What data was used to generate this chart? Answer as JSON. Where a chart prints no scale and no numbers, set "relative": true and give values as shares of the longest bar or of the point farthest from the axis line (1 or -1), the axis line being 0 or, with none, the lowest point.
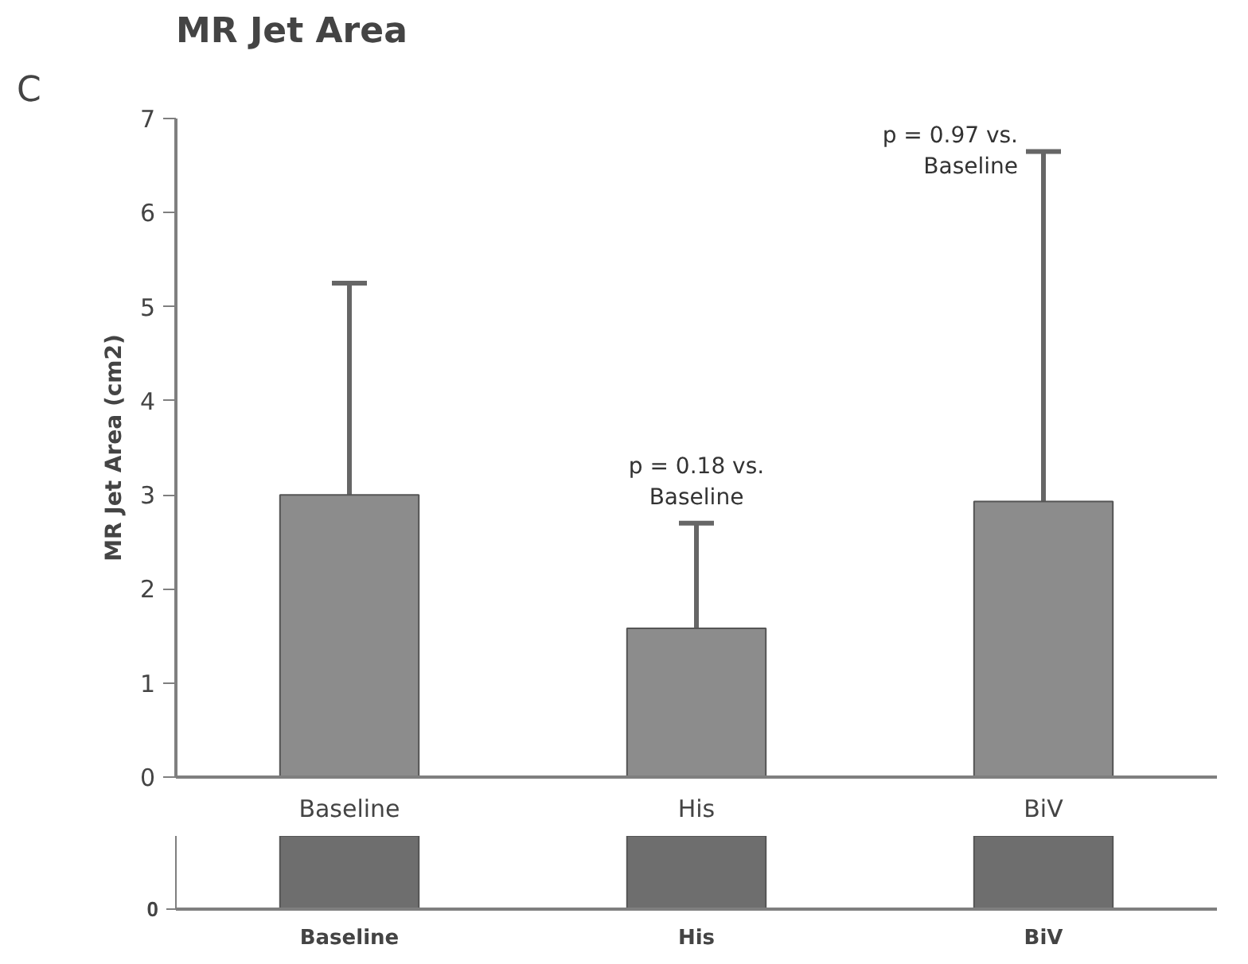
{
  "chart_data": [
    {
      "type": "bar",
      "title": "MR Jet Area",
      "ylabel": "MR Jet Area (cm2)",
      "categories": [
        "Baseline",
        "His",
        "BiV"
      ],
      "values": [
        3.0,
        1.58,
        2.93
      ],
      "color": "#8c8c8c",
      "errors": [
        [
          3.0,
          5.25
        ],
        [
          1.58,
          2.7
        ],
        [
          2.93,
          6.65
        ]
      ],
      "ylim": [
        0,
        7
      ],
      "yticks": [
        0,
        1,
        2,
        3,
        4,
        5,
        6,
        7
      ],
      "grid": false,
      "annotations": [
        "C",
        {
          "text": "p = 0.18 vs.\nBaseline",
          "x": "His",
          "y": 2.7
        },
        {
          "text": "p = 0.97 vs.\nBaseline",
          "x": "BiV",
          "y": 6.65
        }
      ]
    },
    {
      "type": "bar",
      "categories": [
        "Baseline",
        "His",
        "BiV"
      ],
      "values": [
        1,
        1,
        1
      ],
      "color": "#6e6e6e",
      "relative": true,
      "annotations": [
        "0"
      ]
    }
  ]
}
